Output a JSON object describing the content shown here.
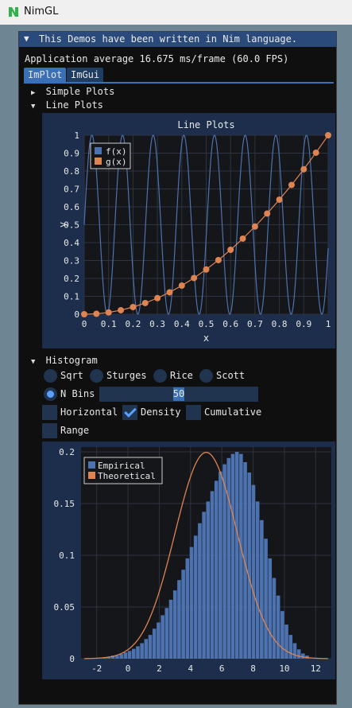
{
  "app": {
    "title": "NimGL"
  },
  "window": {
    "header": "This Demos have been written in Nim language.",
    "fps_text": "Application average 16.675 ms/frame (60.0 FPS)",
    "tabs": [
      "ImPlot",
      "ImGui"
    ],
    "active_tab": "ImPlot"
  },
  "sections": {
    "simple_plots": "Simple Plots",
    "line_plots": "Line Plots",
    "histogram": "Histogram"
  },
  "histogram_controls": {
    "radios": [
      "Sqrt",
      "Sturges",
      "Rice",
      "Scott",
      "N Bins"
    ],
    "selected": "N Bins",
    "nbins_value": "50",
    "checkboxes": {
      "horizontal": "Horizontal",
      "density": "Density",
      "cumulative": "Cumulative",
      "range": "Range"
    },
    "density_checked": true
  },
  "colors": {
    "accent": "#3b6fb6",
    "series_blue": "#4c72b0",
    "series_orange": "#dd8452"
  },
  "chart_data": [
    {
      "type": "line",
      "title": "Line Plots",
      "xlabel": "x",
      "ylabel": "y",
      "xlim": [
        0,
        1
      ],
      "ylim": [
        0,
        1
      ],
      "xticks": [
        "0",
        "0.1",
        "0.2",
        "0.3",
        "0.4",
        "0.5",
        "0.6",
        "0.7",
        "0.8",
        "0.9",
        "1"
      ],
      "yticks": [
        "0",
        "0.1",
        "0.2",
        "0.3",
        "0.4",
        "0.5",
        "0.6",
        "0.7",
        "0.8",
        "0.9",
        "1"
      ],
      "legend_placement": "top-left",
      "grid": true,
      "series": [
        {
          "name": "f(x)",
          "function": "0.5 + 0.5*sin(50*x)",
          "x_range": [
            0,
            1
          ]
        },
        {
          "name": "g(x)",
          "x": [
            0,
            0.05,
            0.1,
            0.15,
            0.2,
            0.25,
            0.3,
            0.35,
            0.4,
            0.45,
            0.5,
            0.55,
            0.6,
            0.65,
            0.7,
            0.75,
            0.8,
            0.85,
            0.9,
            0.95,
            1
          ],
          "y": [
            0,
            0.0025,
            0.01,
            0.0225,
            0.04,
            0.0625,
            0.09,
            0.1225,
            0.16,
            0.2025,
            0.25,
            0.3025,
            0.36,
            0.4225,
            0.49,
            0.5625,
            0.64,
            0.7225,
            0.81,
            0.9025,
            1
          ]
        }
      ]
    },
    {
      "type": "bar",
      "xlabel": "",
      "ylabel": "",
      "xlim": [
        -3,
        13
      ],
      "ylim": [
        0,
        0.2
      ],
      "xticks": [
        "-2",
        "0",
        "2",
        "4",
        "6",
        "8",
        "10",
        "12"
      ],
      "yticks": [
        "0",
        "0.05",
        "0.1",
        "0.15",
        "0.2"
      ],
      "legend_placement": "top-left",
      "grid": true,
      "series": [
        {
          "name": "Empirical",
          "bins": 50,
          "bin_range": [
            -1.6,
            11.6
          ],
          "density": [
            0.0015,
            0.002,
            0.003,
            0.003,
            0.0045,
            0.006,
            0.0075,
            0.0095,
            0.012,
            0.015,
            0.019,
            0.023,
            0.029,
            0.035,
            0.042,
            0.049,
            0.057,
            0.066,
            0.076,
            0.086,
            0.097,
            0.108,
            0.119,
            0.131,
            0.142,
            0.152,
            0.162,
            0.172,
            0.181,
            0.188,
            0.194,
            0.198,
            0.2,
            0.198,
            0.19,
            0.18,
            0.168,
            0.152,
            0.134,
            0.116,
            0.097,
            0.078,
            0.061,
            0.046,
            0.033,
            0.023,
            0.015,
            0.009,
            0.005,
            0.003
          ]
        },
        {
          "name": "Theoretical",
          "distribution": "normal",
          "mean": 5,
          "std": 2
        }
      ]
    }
  ]
}
